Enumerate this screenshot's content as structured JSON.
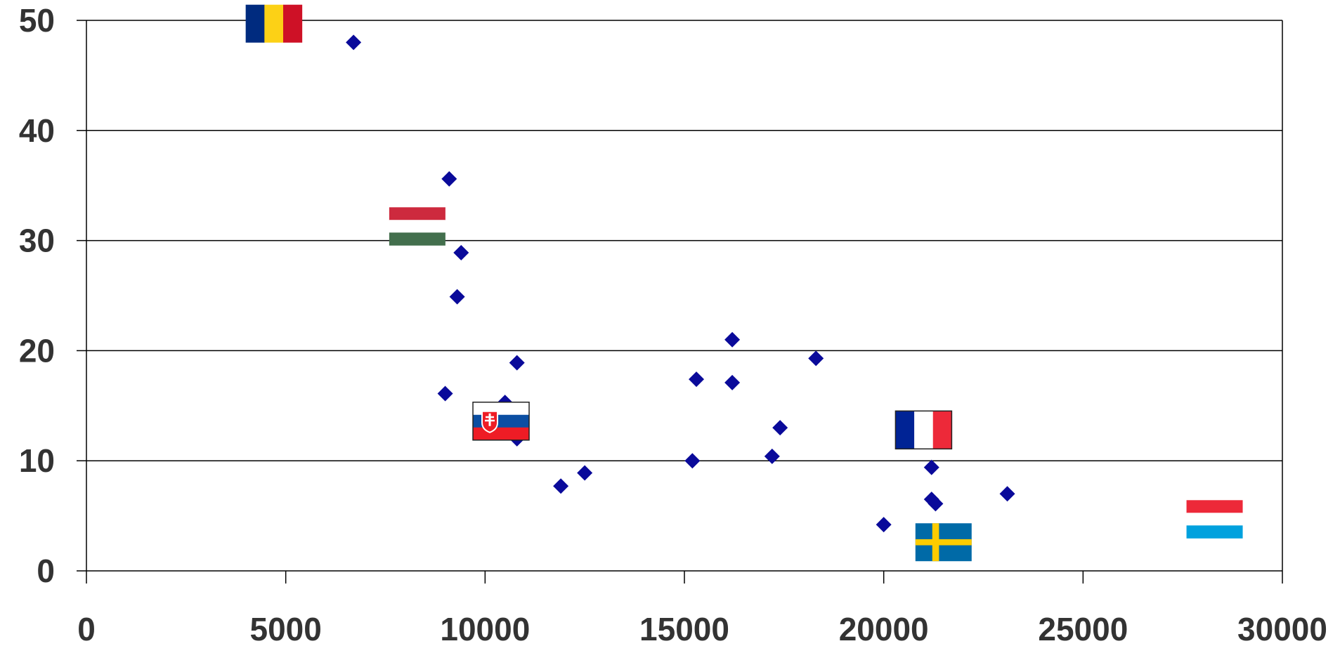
{
  "chart_data": {
    "type": "scatter",
    "title": "",
    "xlabel": "",
    "ylabel": "",
    "xlim": [
      0,
      30000
    ],
    "ylim": [
      0,
      50
    ],
    "x_ticks": [
      "0",
      "5000",
      "10000",
      "15000",
      "20000",
      "25000",
      "30000"
    ],
    "y_ticks": [
      "0",
      "10",
      "20",
      "30",
      "40",
      "50"
    ],
    "grid": "horizontal",
    "legend": "none",
    "marker": "diamond",
    "marker_color": "#0a0a9a",
    "points": [
      {
        "x": 6700,
        "y": 48.0
      },
      {
        "x": 9100,
        "y": 35.6
      },
      {
        "x": 9400,
        "y": 28.9
      },
      {
        "x": 9300,
        "y": 24.9
      },
      {
        "x": 9000,
        "y": 16.1
      },
      {
        "x": 10800,
        "y": 18.9
      },
      {
        "x": 10500,
        "y": 15.3
      },
      {
        "x": 10800,
        "y": 12.0
      },
      {
        "x": 11900,
        "y": 7.7
      },
      {
        "x": 12500,
        "y": 8.9
      },
      {
        "x": 15200,
        "y": 10.0
      },
      {
        "x": 15300,
        "y": 17.4
      },
      {
        "x": 16200,
        "y": 21.0
      },
      {
        "x": 16200,
        "y": 17.1
      },
      {
        "x": 17200,
        "y": 10.4
      },
      {
        "x": 17400,
        "y": 13.0
      },
      {
        "x": 18300,
        "y": 19.3
      },
      {
        "x": 21300,
        "y": 13.4
      },
      {
        "x": 21200,
        "y": 9.4
      },
      {
        "x": 21200,
        "y": 6.5
      },
      {
        "x": 21300,
        "y": 6.1
      },
      {
        "x": 20000,
        "y": 4.2
      },
      {
        "x": 23100,
        "y": 7.0
      }
    ],
    "flags": [
      {
        "country": "Romania",
        "x": 4700,
        "y": 49.7,
        "colors": [
          "#002b7f",
          "#fcd116",
          "#ce1126"
        ],
        "orientation": "vertical"
      },
      {
        "country": "Hungary",
        "x": 8300,
        "y": 31.3,
        "colors": [
          "#cd2a3e",
          "#ffffff",
          "#436f4d"
        ],
        "orientation": "horizontal"
      },
      {
        "country": "Slovakia",
        "x": 10400,
        "y": 13.6,
        "colors": [
          "#ffffff",
          "#0b4ea2",
          "#ee1c25"
        ],
        "orientation": "horizontal"
      },
      {
        "country": "France",
        "x": 21000,
        "y": 12.8,
        "colors": [
          "#002395",
          "#ffffff",
          "#ed2939"
        ],
        "orientation": "vertical"
      },
      {
        "country": "Sweden",
        "x": 21500,
        "y": 2.6,
        "colors": [
          "#006aa7",
          "#fecc00"
        ],
        "orientation": "nordic"
      },
      {
        "country": "Luxembourg",
        "x": 28300,
        "y": 4.7,
        "colors": [
          "#ed2939",
          "#ffffff",
          "#00a1de"
        ],
        "orientation": "horizontal"
      }
    ]
  }
}
